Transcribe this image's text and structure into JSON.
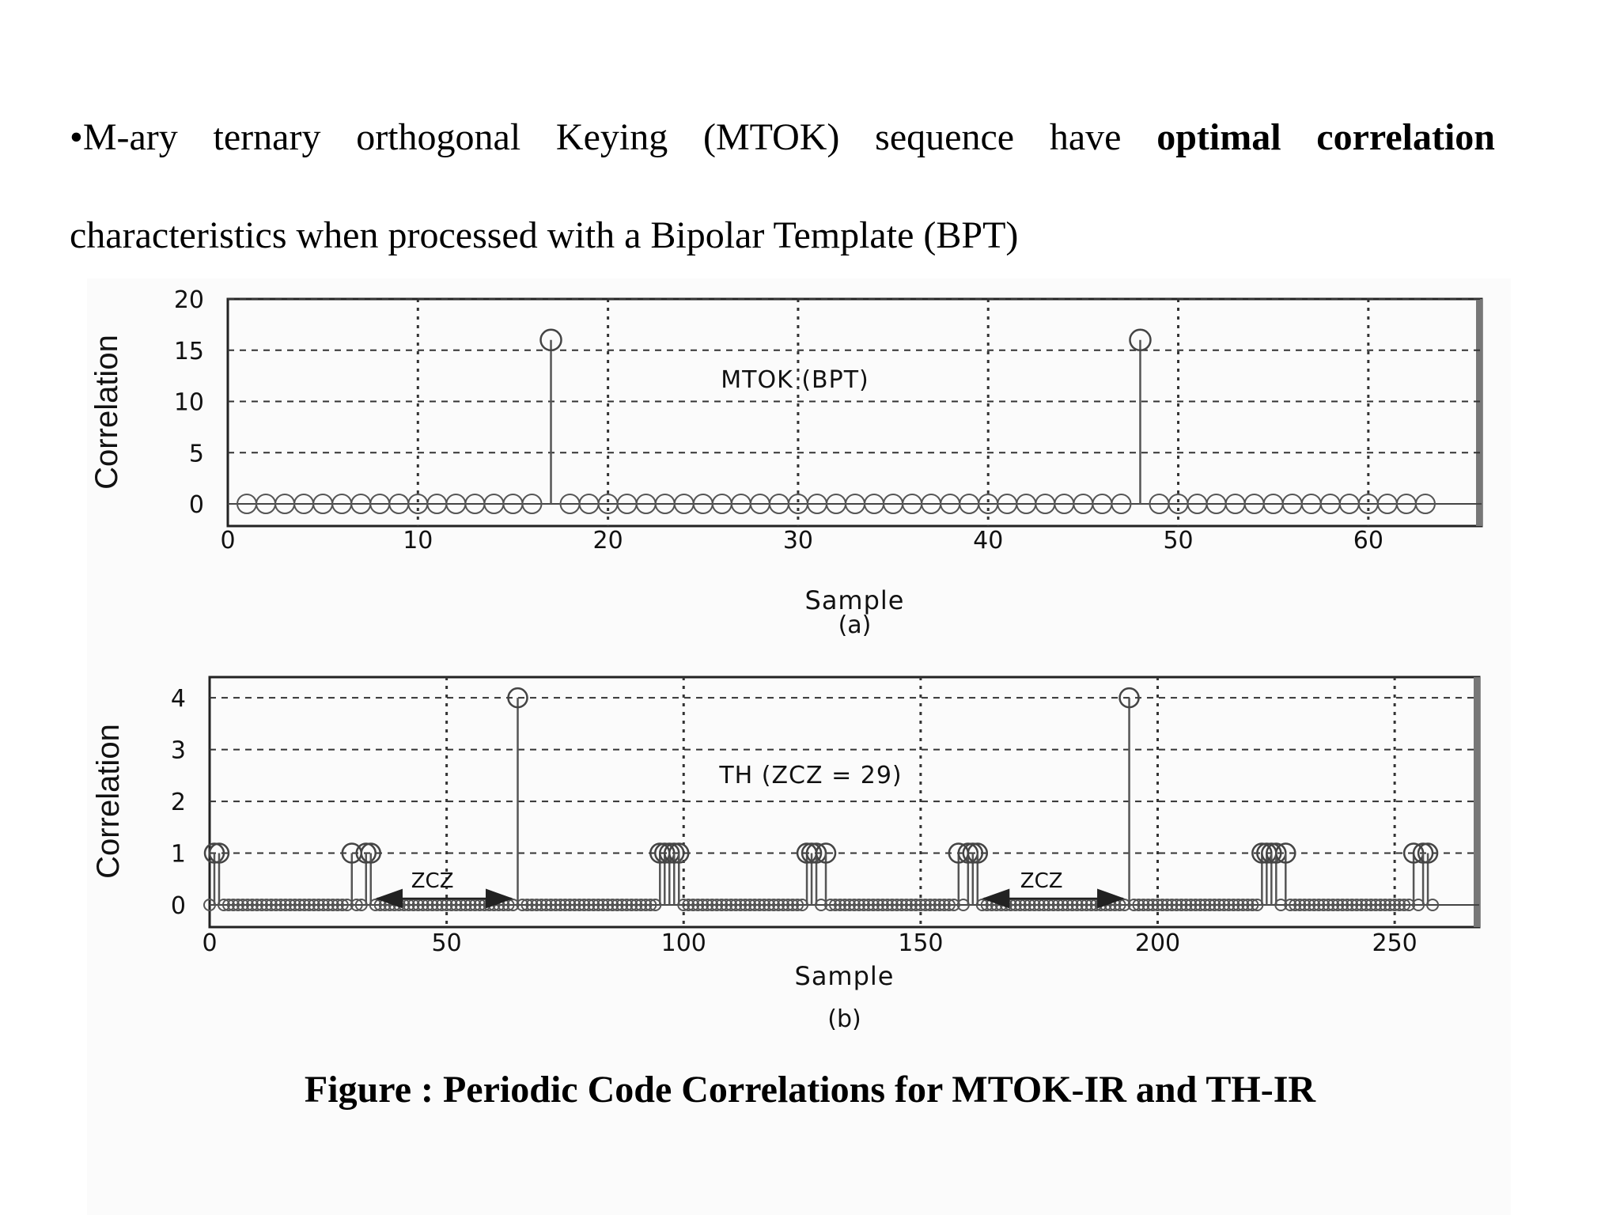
{
  "text": {
    "bullet": "•",
    "line1_normal": "M-ary ternary orthogonal Keying (MTOK) sequence have",
    "line1_bold": "optimal correlation",
    "line2": "characteristics when processed with a Bipolar Template (BPT)",
    "caption": "Figure : Periodic Code Correlations for MTOK-IR and TH-IR"
  },
  "chart_data": [
    {
      "type": "stem",
      "panel_label": "(a)",
      "annotation": "MTOK (BPT)",
      "xlabel": "Sample",
      "ylabel": "Correlation",
      "xlim": [
        0,
        65
      ],
      "ylim": [
        0,
        20
      ],
      "xticks": [
        0,
        10,
        20,
        30,
        40,
        50,
        60
      ],
      "yticks": [
        0,
        5,
        10,
        15,
        20
      ],
      "grid": true,
      "x_range": [
        1,
        63
      ],
      "baseline_value": 0,
      "peaks": [
        {
          "x": 17,
          "y": 16
        },
        {
          "x": 48,
          "y": 16
        }
      ]
    },
    {
      "type": "stem",
      "panel_label": "(b)",
      "annotation": "TH (ZCZ = 29)",
      "zcz_label": "ZCZ",
      "xlabel": "Sample",
      "ylabel": "Correlation",
      "xlim": [
        0,
        267
      ],
      "ylim": [
        0,
        4.4
      ],
      "xticks": [
        0,
        50,
        100,
        150,
        200,
        250
      ],
      "yticks": [
        0,
        1,
        2,
        3,
        4
      ],
      "grid": true,
      "x_range": [
        0,
        258
      ],
      "baseline_value": 0,
      "peaks": [
        {
          "x": 1,
          "y": 1
        },
        {
          "x": 2,
          "y": 1
        },
        {
          "x": 30,
          "y": 1
        },
        {
          "x": 33,
          "y": 1
        },
        {
          "x": 34,
          "y": 1
        },
        {
          "x": 65,
          "y": 4
        },
        {
          "x": 95,
          "y": 1
        },
        {
          "x": 96,
          "y": 1
        },
        {
          "x": 97,
          "y": 1
        },
        {
          "x": 98,
          "y": 1
        },
        {
          "x": 99,
          "y": 1
        },
        {
          "x": 126,
          "y": 1
        },
        {
          "x": 127,
          "y": 1
        },
        {
          "x": 128,
          "y": 1
        },
        {
          "x": 130,
          "y": 1
        },
        {
          "x": 158,
          "y": 1
        },
        {
          "x": 160,
          "y": 1
        },
        {
          "x": 161,
          "y": 1
        },
        {
          "x": 162,
          "y": 1
        },
        {
          "x": 194,
          "y": 4
        },
        {
          "x": 222,
          "y": 1
        },
        {
          "x": 223,
          "y": 1
        },
        {
          "x": 224,
          "y": 1
        },
        {
          "x": 225,
          "y": 1
        },
        {
          "x": 227,
          "y": 1
        },
        {
          "x": 254,
          "y": 1
        },
        {
          "x": 256,
          "y": 1
        },
        {
          "x": 257,
          "y": 1
        }
      ],
      "zcz_arrows": [
        {
          "from": 34,
          "to": 65
        },
        {
          "from": 162,
          "to": 194
        }
      ]
    }
  ]
}
